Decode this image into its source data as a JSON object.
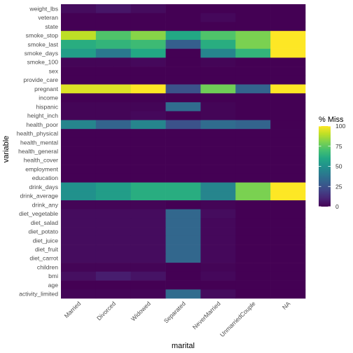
{
  "chart_data": {
    "type": "heatmap",
    "title": "",
    "xlabel": "marital",
    "ylabel": "variable",
    "x": [
      "Married",
      "Divorced",
      "Widowed",
      "Separated",
      "NeverMarried",
      "UnmarriedCouple",
      "NA"
    ],
    "y": [
      "weight_lbs",
      "veteran",
      "state",
      "smoke_stop",
      "smoke_last",
      "smoke_days",
      "smoke_100",
      "sex",
      "provide_care",
      "pregnant",
      "income",
      "hispanic",
      "height_inch",
      "health_poor",
      "health_physical",
      "health_mental",
      "health_general",
      "health_cover",
      "employment",
      "education",
      "drink_days",
      "drink_average",
      "drink_any",
      "diet_vegetable",
      "diet_salad",
      "diet_potato",
      "diet_juice",
      "diet_fruit",
      "diet_carrot",
      "children",
      "bmi",
      "age",
      "activity_limited"
    ],
    "values": [
      [
        3,
        6,
        3,
        0,
        0,
        0,
        0
      ],
      [
        0,
        0,
        0,
        0,
        2,
        0,
        0
      ],
      [
        0,
        0,
        0,
        0,
        0,
        0,
        0
      ],
      [
        90,
        72,
        82,
        60,
        72,
        80,
        100
      ],
      [
        62,
        65,
        68,
        30,
        62,
        80,
        100
      ],
      [
        55,
        40,
        60,
        0,
        45,
        65,
        100
      ],
      [
        1,
        1,
        2,
        0,
        1,
        0,
        0
      ],
      [
        0,
        0,
        0,
        0,
        0,
        0,
        0
      ],
      [
        0,
        0,
        0,
        0,
        0,
        0,
        0
      ],
      [
        95,
        95,
        100,
        25,
        78,
        32,
        100
      ],
      [
        0,
        0,
        0,
        0,
        0,
        0,
        0
      ],
      [
        1,
        1,
        1,
        35,
        1,
        0,
        0
      ],
      [
        1,
        1,
        2,
        0,
        1,
        0,
        0
      ],
      [
        45,
        32,
        45,
        25,
        35,
        32,
        0
      ],
      [
        0,
        0,
        0,
        0,
        0,
        0,
        0
      ],
      [
        0,
        0,
        0,
        0,
        0,
        0,
        0
      ],
      [
        0,
        0,
        0,
        0,
        0,
        0,
        0
      ],
      [
        0,
        0,
        0,
        0,
        0,
        0,
        0
      ],
      [
        0,
        0,
        0,
        0,
        0,
        0,
        0
      ],
      [
        0,
        0,
        0,
        0,
        0,
        0,
        0
      ],
      [
        50,
        55,
        62,
        62,
        45,
        80,
        100
      ],
      [
        50,
        55,
        62,
        62,
        45,
        80,
        100
      ],
      [
        1,
        1,
        1,
        0,
        1,
        0,
        0
      ],
      [
        3,
        3,
        3,
        33,
        3,
        0,
        0
      ],
      [
        3,
        3,
        3,
        33,
        2,
        0,
        0
      ],
      [
        3,
        3,
        3,
        33,
        2,
        0,
        0
      ],
      [
        3,
        3,
        3,
        33,
        2,
        0,
        0
      ],
      [
        3,
        3,
        3,
        33,
        2,
        0,
        0
      ],
      [
        3,
        3,
        3,
        33,
        2,
        0,
        0
      ],
      [
        1,
        1,
        1,
        0,
        1,
        0,
        0
      ],
      [
        4,
        8,
        5,
        0,
        2,
        0,
        0
      ],
      [
        0,
        0,
        0,
        0,
        0,
        0,
        0
      ],
      [
        1,
        1,
        1,
        35,
        3,
        0,
        0
      ]
    ],
    "zlim": [
      0,
      100
    ],
    "colormap": "viridis",
    "legend": {
      "title": "% Miss",
      "ticks": [
        0,
        25,
        50,
        75,
        100
      ],
      "placement": "right"
    },
    "grid": true
  }
}
